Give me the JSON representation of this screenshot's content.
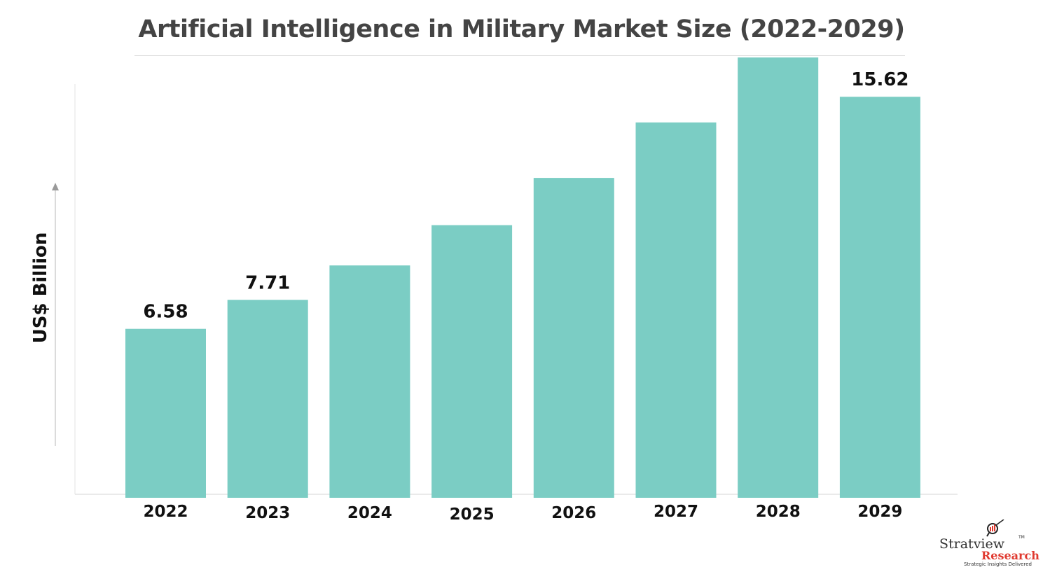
{
  "chart_data": {
    "type": "bar",
    "title": "Artificial Intelligence in Military Market Size (2022-2029)",
    "ylabel": "US$ Billion",
    "xlabel": "",
    "categories": [
      "2022",
      "2023",
      "2024",
      "2025",
      "2026",
      "2027",
      "2028",
      "2029"
    ],
    "values": [
      6.58,
      7.71,
      9.05,
      10.62,
      12.46,
      14.62,
      17.15,
      15.62
    ],
    "data_labels": [
      "6.58",
      "7.71",
      "",
      "",
      "",
      "",
      "",
      "15.62"
    ],
    "ylim": [
      0,
      20
    ],
    "grid": false,
    "legend": "none",
    "bar_color": "#7bcdc4"
  },
  "branding": {
    "name": "Stratview",
    "tm": "TM",
    "sub": "Research",
    "tagline": "Strategic Insights Delivered"
  }
}
